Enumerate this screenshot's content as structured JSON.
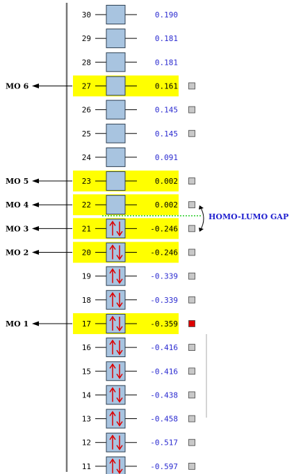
{
  "levels": [
    {
      "num": "30",
      "energy": "0.190",
      "occupied": false,
      "highlight": false,
      "checkbox": false,
      "checked": false
    },
    {
      "num": "29",
      "energy": "0.181",
      "occupied": false,
      "highlight": false,
      "checkbox": false,
      "checked": false
    },
    {
      "num": "28",
      "energy": "0.181",
      "occupied": false,
      "highlight": false,
      "checkbox": false,
      "checked": false
    },
    {
      "num": "27",
      "energy": "0.161",
      "occupied": false,
      "highlight": true,
      "checkbox": true,
      "checked": false,
      "mo": "MO 6"
    },
    {
      "num": "26",
      "energy": "0.145",
      "occupied": false,
      "highlight": false,
      "checkbox": true,
      "checked": false
    },
    {
      "num": "25",
      "energy": "0.145",
      "occupied": false,
      "highlight": false,
      "checkbox": true,
      "checked": false
    },
    {
      "num": "24",
      "energy": "0.091",
      "occupied": false,
      "highlight": false,
      "checkbox": false,
      "checked": false
    },
    {
      "num": "23",
      "energy": "0.002",
      "occupied": false,
      "highlight": true,
      "checkbox": true,
      "checked": false,
      "mo": "MO 5"
    },
    {
      "num": "22",
      "energy": "0.002",
      "occupied": false,
      "highlight": true,
      "checkbox": true,
      "checked": false,
      "mo": "MO 4"
    },
    {
      "num": "21",
      "energy": "-0.246",
      "occupied": true,
      "highlight": true,
      "checkbox": true,
      "checked": false,
      "mo": "MO 3"
    },
    {
      "num": "20",
      "energy": "-0.246",
      "occupied": true,
      "highlight": true,
      "checkbox": true,
      "checked": false,
      "mo": "MO 2"
    },
    {
      "num": "19",
      "energy": "-0.339",
      "occupied": true,
      "highlight": false,
      "checkbox": true,
      "checked": false
    },
    {
      "num": "18",
      "energy": "-0.339",
      "occupied": true,
      "highlight": false,
      "checkbox": true,
      "checked": false
    },
    {
      "num": "17",
      "energy": "-0.359",
      "occupied": true,
      "highlight": true,
      "checkbox": true,
      "checked": true,
      "mo": "MO 1"
    },
    {
      "num": "16",
      "energy": "-0.416",
      "occupied": true,
      "highlight": false,
      "checkbox": true,
      "checked": false
    },
    {
      "num": "15",
      "energy": "-0.416",
      "occupied": true,
      "highlight": false,
      "checkbox": true,
      "checked": false
    },
    {
      "num": "14",
      "energy": "-0.438",
      "occupied": true,
      "highlight": false,
      "checkbox": true,
      "checked": false
    },
    {
      "num": "13",
      "energy": "-0.458",
      "occupied": true,
      "highlight": false,
      "checkbox": true,
      "checked": false
    },
    {
      "num": "12",
      "energy": "-0.517",
      "occupied": true,
      "highlight": false,
      "checkbox": true,
      "checked": false
    },
    {
      "num": "11",
      "energy": "-0.597",
      "occupied": true,
      "highlight": false,
      "checkbox": true,
      "checked": false
    }
  ],
  "gap_label": "HOMO-LUMO GAP",
  "colors": {
    "highlight": "#ffff00",
    "box_fill": "#a8c4e0",
    "box_stroke": "#2c3e50",
    "electron_arrow": "#dd0000",
    "checkbox": "#c8c8c8",
    "checkbox_checked": "#dd0000",
    "gap_line": "#22cc22",
    "gap_text": "#1f1fcf"
  }
}
